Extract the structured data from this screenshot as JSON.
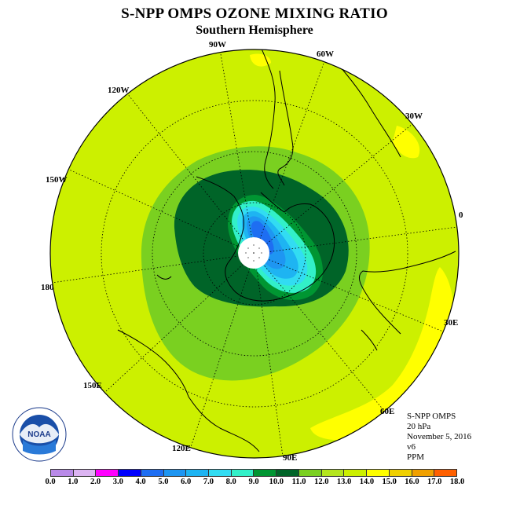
{
  "title": "S-NPP OMPS OZONE MIXING RATIO",
  "subtitle": "Southern Hemisphere",
  "longitude_labels": {
    "lon_90w": "90W",
    "lon_60w": "60W",
    "lon_30w": "30W",
    "lon_0": "0",
    "lon_30e": "30E",
    "lon_60e": "60E",
    "lon_90e": "90E",
    "lon_120e": "120E",
    "lon_150e": "150E",
    "lon_180": "180",
    "lon_150w": "150W",
    "lon_120w": "120W"
  },
  "info": {
    "instrument": "S-NPP OMPS",
    "level": "20 hPa",
    "date": "November 5, 2016",
    "version": "v6",
    "units": "PPM"
  },
  "logo": {
    "text": "NOAA",
    "ring_text": "NATIONAL OCEANIC AND ATMOSPHERIC ADMINISTRATION · U.S. DEPARTMENT OF COMMERCE"
  },
  "colorbar": {
    "colors": [
      "#b98ae8",
      "#dcb4f2",
      "#ff00ff",
      "#0000ff",
      "#1e6ef2",
      "#1e96f2",
      "#1eb4f2",
      "#32dcf2",
      "#32f0c8",
      "#009632",
      "#006428",
      "#7ad020",
      "#b4e61e",
      "#ccf000",
      "#ffff00",
      "#f0d000",
      "#f0a000",
      "#ff6000",
      "#ff0000",
      "#c00000",
      "#8b5a3c"
    ],
    "tick_labels": [
      "0.0",
      "1.0",
      "2.0",
      "3.0",
      "4.0",
      "5.0",
      "6.0",
      "7.0",
      "8.0",
      "9.0",
      "10.0",
      "11.0",
      "12.0",
      "13.0",
      "14.0",
      "15.0",
      "16.0",
      "17.0",
      "18.0"
    ]
  },
  "colors": {
    "background_field": "#ccf000",
    "level_10_11": "#7ad020",
    "level_9_10": "#006428",
    "level_8_9": "#009632",
    "level_high": "#ffff00"
  }
}
